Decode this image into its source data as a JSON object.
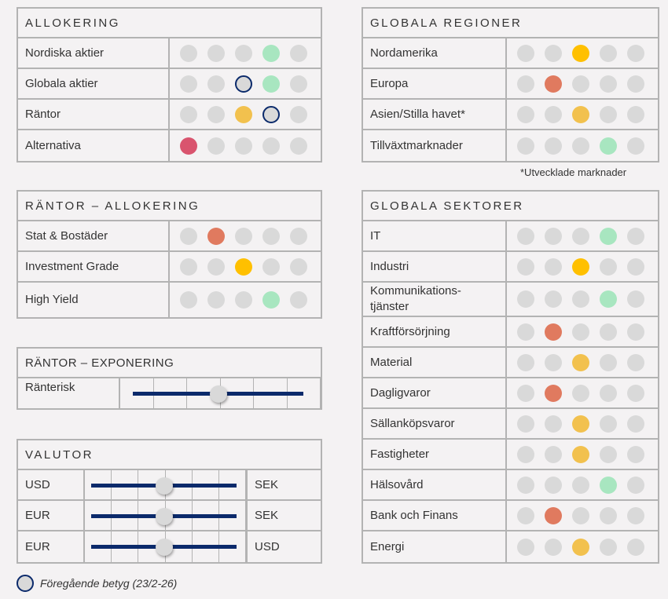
{
  "colors": {
    "empty": "#d9d9d9",
    "red": "#d9546e",
    "orange": "#e07a5f",
    "yellow": "#f2c14e",
    "amber": "#ffc000",
    "green": "#a8e6c0",
    "navy": "#0b2a6b"
  },
  "allokering": {
    "title": "ALLOKERING",
    "rows": [
      {
        "label": "Nordiska aktier",
        "score": 4,
        "color": "green"
      },
      {
        "label": "Globala aktier",
        "score": 4,
        "color": "green",
        "previous": 3
      },
      {
        "label": "Räntor",
        "score": 3,
        "color": "yellow",
        "previous": 4
      },
      {
        "label": "Alternativa",
        "score": 1,
        "color": "red"
      }
    ]
  },
  "rantor_allokering": {
    "title": "RÄNTOR – ALLOKERING",
    "rows": [
      {
        "label": "Stat & Bostäder",
        "score": 2,
        "color": "orange"
      },
      {
        "label": "Investment Grade",
        "score": 3,
        "color": "amber"
      },
      {
        "label": "High Yield",
        "score": 4,
        "color": "green"
      }
    ]
  },
  "rantor_exponering": {
    "title": "RÄNTOR – EXPONERING",
    "rows": [
      {
        "label": "Ränterisk",
        "position": 0.5
      }
    ]
  },
  "valutor": {
    "title": "VALUTOR",
    "rows": [
      {
        "left": "USD",
        "right": "SEK",
        "position": 0.5
      },
      {
        "left": "EUR",
        "right": "SEK",
        "position": 0.5
      },
      {
        "left": "EUR",
        "right": "USD",
        "position": 0.5
      }
    ]
  },
  "legend": {
    "label": "Föregående betyg (23/2-26)"
  },
  "globala_regioner": {
    "title": "GLOBALA REGIONER",
    "rows": [
      {
        "label": "Nordamerika",
        "score": 3,
        "color": "amber"
      },
      {
        "label": "Europa",
        "score": 2,
        "color": "orange"
      },
      {
        "label": "Asien/Stilla havet*",
        "score": 3,
        "color": "yellow"
      },
      {
        "label": "Tillväxtmarknader",
        "score": 4,
        "color": "green"
      }
    ],
    "note": "*Utvecklade marknader"
  },
  "globala_sektorer": {
    "title": "GLOBALA SEKTORER",
    "rows": [
      {
        "label": "IT",
        "score": 4,
        "color": "green"
      },
      {
        "label": "Industri",
        "score": 3,
        "color": "amber"
      },
      {
        "label": "Kommunikations-\ntjänster",
        "score": 4,
        "color": "green"
      },
      {
        "label": "Kraftförsörjning",
        "score": 2,
        "color": "orange"
      },
      {
        "label": "Material",
        "score": 3,
        "color": "yellow"
      },
      {
        "label": "Dagligvaror",
        "score": 2,
        "color": "orange"
      },
      {
        "label": "Sällanköpsvaror",
        "score": 3,
        "color": "yellow"
      },
      {
        "label": "Fastigheter",
        "score": 3,
        "color": "yellow"
      },
      {
        "label": "Hälsovård",
        "score": 4,
        "color": "green"
      },
      {
        "label": "Bank och Finans",
        "score": 2,
        "color": "orange"
      },
      {
        "label": "Energi",
        "score": 3,
        "color": "yellow"
      }
    ]
  }
}
